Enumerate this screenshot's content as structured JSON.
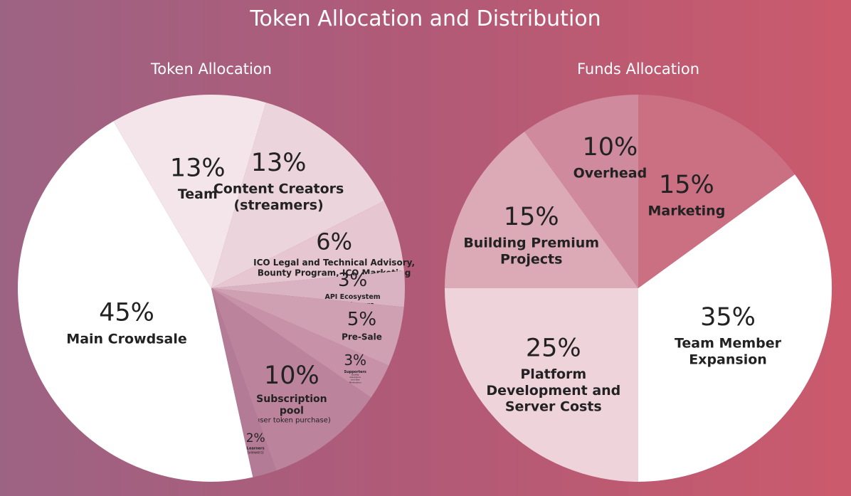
{
  "title": "Token Allocation and Distribution",
  "colors": {
    "text_light": "#ffffff",
    "text_dark": "#222222"
  },
  "chart_data": [
    {
      "type": "pie",
      "title": "Token Allocation",
      "slices": [
        {
          "label": "Main Crowdsale",
          "sublabel": "",
          "value": 45,
          "value_label": "45%",
          "color": "#ffffff"
        },
        {
          "label": "Team",
          "sublabel": "",
          "value": 13,
          "value_label": "13%",
          "color": "#f3e5ea"
        },
        {
          "label": "Content Creators (streamers)",
          "sublabel": "",
          "value": 13,
          "value_label": "13%",
          "color": "#ecd4dd"
        },
        {
          "label": "ICO Legal and Technical Advisory, Bounty Program, ICO Marketing",
          "sublabel": "",
          "value": 6,
          "value_label": "6%",
          "color": "#e5c6d1"
        },
        {
          "label": "API Ecosystem Developers",
          "sublabel": "",
          "value": 3,
          "value_label": "3%",
          "color": "#dab3c2"
        },
        {
          "label": "Pre-Sale",
          "sublabel": "",
          "value": 5,
          "value_label": "5%",
          "color": "#cfa0b2"
        },
        {
          "label": "Supporters",
          "sublabel": "Quality Assurance and Site Moderation",
          "value": 3,
          "value_label": "3%",
          "color": "#c792a7"
        },
        {
          "label": "Subscription pool",
          "sublabel": "(user token purchase)",
          "value": 10,
          "value_label": "10%",
          "color": "#bc839c"
        },
        {
          "label": "Learners",
          "sublabel": "(viewers)",
          "value": 2,
          "value_label": "2%",
          "color": "#b47b96"
        }
      ]
    },
    {
      "type": "pie",
      "title": "Funds Allocation",
      "slices": [
        {
          "label": "Marketing",
          "value": 15,
          "value_label": "15%",
          "color": "#cb6f83"
        },
        {
          "label": "Team Member Expansion",
          "value": 35,
          "value_label": "35%",
          "color": "#ffffff"
        },
        {
          "label": "Platform Development and Server Costs",
          "value": 25,
          "value_label": "25%",
          "color": "#efd3da"
        },
        {
          "label": "Building Premium Projects",
          "value": 15,
          "value_label": "15%",
          "color": "#dca9b7"
        },
        {
          "label": "Overhead",
          "value": 10,
          "value_label": "10%",
          "color": "#cf8a9d"
        }
      ]
    }
  ]
}
